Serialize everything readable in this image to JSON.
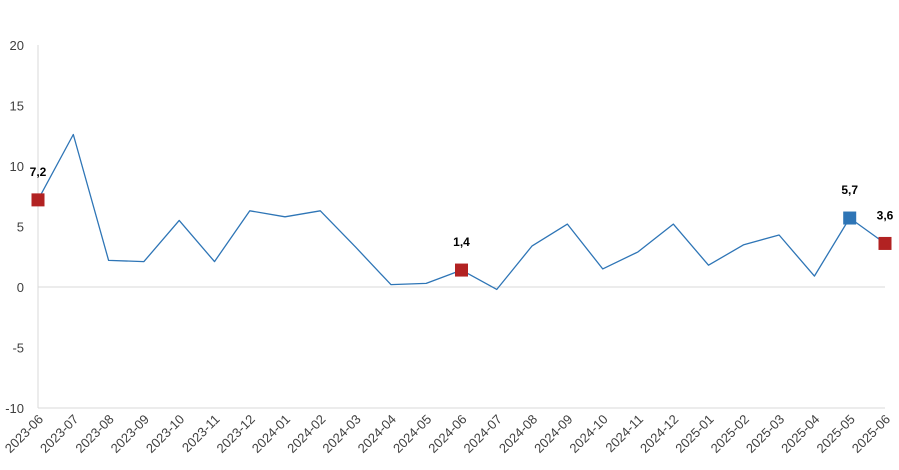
{
  "chart_data": {
    "type": "line",
    "title": "",
    "xlabel": "",
    "ylabel": "",
    "ylim": [
      -10,
      20
    ],
    "yticks": [
      -10,
      -5,
      0,
      5,
      10,
      15,
      20
    ],
    "grid": false,
    "line_color": "#2E75B6",
    "categories": [
      "2023-06",
      "2023-07",
      "2023-08",
      "2023-09",
      "2023-10",
      "2023-11",
      "2023-12",
      "2024-01",
      "2024-02",
      "2024-03",
      "2024-04",
      "2024-05",
      "2024-06",
      "2024-07",
      "2024-08",
      "2024-09",
      "2024-10",
      "2024-11",
      "2024-12",
      "2025-01",
      "2025-02",
      "2025-03",
      "2025-04",
      "2025-05",
      "2025-06"
    ],
    "series": [
      {
        "values": [
          7.2,
          12.6,
          2.2,
          2.1,
          5.5,
          2.1,
          6.3,
          5.8,
          6.3,
          3.3,
          0.2,
          0.3,
          1.4,
          -0.2,
          3.4,
          5.2,
          1.5,
          2.9,
          5.2,
          1.8,
          3.5,
          4.3,
          0.9,
          5.7,
          3.6
        ]
      }
    ],
    "highlighted_points": [
      {
        "index": 0,
        "label": "7,2",
        "color": "#B22222"
      },
      {
        "index": 12,
        "label": "1,4",
        "color": "#B22222"
      },
      {
        "index": 23,
        "label": "5,7",
        "color": "#2E75B6"
      },
      {
        "index": 24,
        "label": "3,6",
        "color": "#B22222"
      }
    ]
  }
}
